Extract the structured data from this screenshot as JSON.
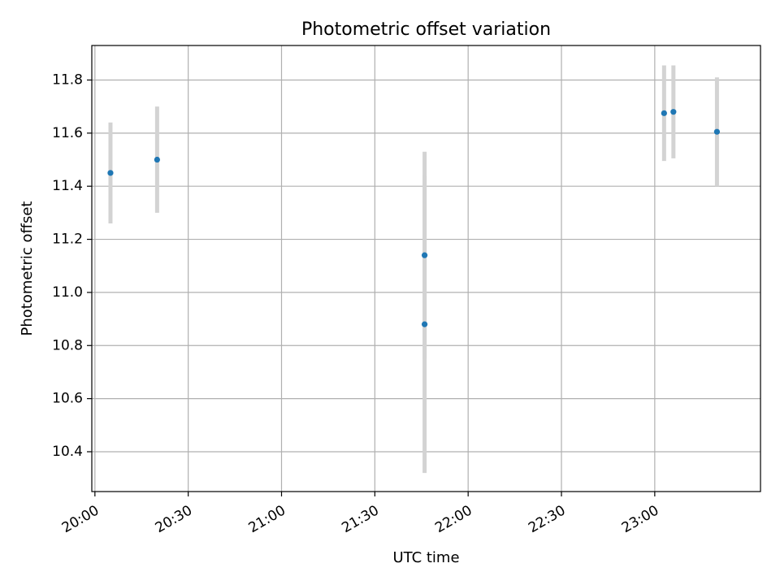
{
  "chart_data": {
    "type": "scatter",
    "title": "Photometric offset variation",
    "xlabel": "UTC time",
    "ylabel": "Photometric offset",
    "x_unit": "time of day (HH:MM, UTC)",
    "xlim": [
      "19:59",
      "23:34"
    ],
    "ylim": [
      10.25,
      11.93
    ],
    "x_ticks": [
      "20:00",
      "20:30",
      "21:00",
      "21:30",
      "22:00",
      "22:30",
      "23:00"
    ],
    "y_ticks": [
      10.4,
      10.6,
      10.8,
      11.0,
      11.2,
      11.4,
      11.6,
      11.8
    ],
    "grid": true,
    "legend": "none",
    "series": [
      {
        "points": [
          {
            "x": "20:05",
            "y": 11.45,
            "err": 0.19
          },
          {
            "x": "20:20",
            "y": 11.5,
            "err": 0.2
          },
          {
            "x": "21:46",
            "y": 11.14,
            "err": 0.39
          },
          {
            "x": "21:46",
            "y": 10.88,
            "err": 0.56
          },
          {
            "x": "23:03",
            "y": 11.675,
            "err": 0.18
          },
          {
            "x": "23:06",
            "y": 11.68,
            "err": 0.175
          },
          {
            "x": "23:20",
            "y": 11.605,
            "err": 0.205
          }
        ]
      }
    ],
    "colors": {
      "marker": "#1f77b4",
      "errorbar": "#d3d3d3",
      "grid": "#b0b0b0",
      "axis": "#000000"
    }
  }
}
